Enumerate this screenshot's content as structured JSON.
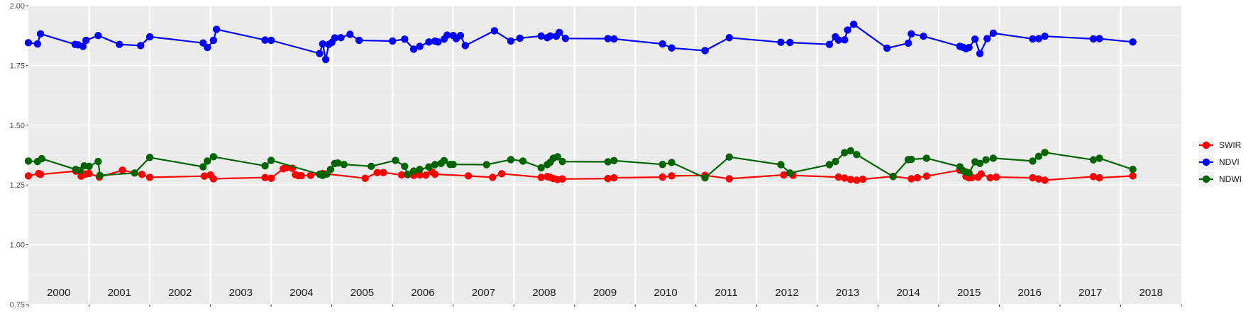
{
  "chart_data": {
    "type": "line",
    "title": "",
    "xlabel": "",
    "ylabel": "",
    "ylim": [
      0.75,
      2.0
    ],
    "yticks": [
      0.75,
      1.0,
      1.25,
      1.5,
      1.75,
      2.0
    ],
    "ytick_labels": [
      "0.75",
      "1.00",
      "1.25",
      "1.50",
      "1.75",
      "2.00"
    ],
    "xlim": [
      2000.0,
      2019.0
    ],
    "year_labels": [
      "2000",
      "2001",
      "2002",
      "2003",
      "2004",
      "2005",
      "2006",
      "2007",
      "2008",
      "2009",
      "2010",
      "2011",
      "2012",
      "2013",
      "2014",
      "2015",
      "2016",
      "2017",
      "2018"
    ],
    "grid": true,
    "legend_position": "right",
    "series": [
      {
        "name": "SWIR",
        "color": "#ff0000",
        "points": [
          [
            2000.0,
            1.288
          ],
          [
            2000.17,
            1.298
          ],
          [
            2000.2,
            1.294
          ],
          [
            2000.78,
            1.308
          ],
          [
            2000.87,
            1.287
          ],
          [
            2000.95,
            1.296
          ],
          [
            2001.0,
            1.298
          ],
          [
            2001.17,
            1.283
          ],
          [
            2001.55,
            1.312
          ],
          [
            2001.87,
            1.294
          ],
          [
            2002.0,
            1.282
          ],
          [
            2002.9,
            1.287
          ],
          [
            2003.0,
            1.292
          ],
          [
            2003.05,
            1.276
          ],
          [
            2003.9,
            1.281
          ],
          [
            2004.0,
            1.278
          ],
          [
            2004.2,
            1.318
          ],
          [
            2004.25,
            1.322
          ],
          [
            2004.35,
            1.32
          ],
          [
            2004.4,
            1.293
          ],
          [
            2004.45,
            1.289
          ],
          [
            2004.5,
            1.289
          ],
          [
            2004.65,
            1.29
          ],
          [
            2004.85,
            1.298
          ],
          [
            2005.55,
            1.278
          ],
          [
            2005.75,
            1.302
          ],
          [
            2005.85,
            1.302
          ],
          [
            2006.15,
            1.292
          ],
          [
            2006.25,
            1.293
          ],
          [
            2006.35,
            1.29
          ],
          [
            2006.45,
            1.292
          ],
          [
            2006.55,
            1.291
          ],
          [
            2006.65,
            1.305
          ],
          [
            2006.7,
            1.295
          ],
          [
            2007.25,
            1.288
          ],
          [
            2007.65,
            1.282
          ],
          [
            2007.8,
            1.297
          ],
          [
            2008.45,
            1.282
          ],
          [
            2008.55,
            1.285
          ],
          [
            2008.6,
            1.282
          ],
          [
            2008.65,
            1.277
          ],
          [
            2008.72,
            1.273
          ],
          [
            2008.8,
            1.275
          ],
          [
            2009.55,
            1.277
          ],
          [
            2009.65,
            1.28
          ],
          [
            2010.45,
            1.283
          ],
          [
            2010.6,
            1.288
          ],
          [
            2011.15,
            1.29
          ],
          [
            2011.55,
            1.276
          ],
          [
            2012.45,
            1.292
          ],
          [
            2012.6,
            1.29
          ],
          [
            2013.35,
            1.283
          ],
          [
            2013.45,
            1.279
          ],
          [
            2013.55,
            1.273
          ],
          [
            2013.65,
            1.27
          ],
          [
            2013.75,
            1.274
          ],
          [
            2014.25,
            1.286
          ],
          [
            2014.55,
            1.276
          ],
          [
            2014.65,
            1.28
          ],
          [
            2014.8,
            1.287
          ],
          [
            2015.35,
            1.312
          ],
          [
            2015.45,
            1.286
          ],
          [
            2015.5,
            1.28
          ],
          [
            2015.55,
            1.281
          ],
          [
            2015.65,
            1.283
          ],
          [
            2015.7,
            1.296
          ],
          [
            2015.85,
            1.28
          ],
          [
            2015.95,
            1.283
          ],
          [
            2016.55,
            1.28
          ],
          [
            2016.65,
            1.275
          ],
          [
            2016.75,
            1.27
          ],
          [
            2017.55,
            1.285
          ],
          [
            2017.65,
            1.28
          ],
          [
            2018.2,
            1.288
          ]
        ]
      },
      {
        "name": "NDVI",
        "color": "#0000ff",
        "points": [
          [
            2000.0,
            1.845
          ],
          [
            2000.15,
            1.84
          ],
          [
            2000.2,
            1.882
          ],
          [
            2000.77,
            1.838
          ],
          [
            2000.82,
            1.836
          ],
          [
            2000.9,
            1.83
          ],
          [
            2000.95,
            1.855
          ],
          [
            2001.15,
            1.875
          ],
          [
            2001.5,
            1.838
          ],
          [
            2001.85,
            1.833
          ],
          [
            2002.0,
            1.87
          ],
          [
            2002.88,
            1.844
          ],
          [
            2002.95,
            1.825
          ],
          [
            2003.05,
            1.855
          ],
          [
            2003.1,
            1.901
          ],
          [
            2003.9,
            1.856
          ],
          [
            2004.0,
            1.855
          ],
          [
            2004.8,
            1.8
          ],
          [
            2004.85,
            1.84
          ],
          [
            2004.9,
            1.775
          ],
          [
            2004.95,
            1.838
          ],
          [
            2005.0,
            1.846
          ],
          [
            2005.05,
            1.865
          ],
          [
            2005.15,
            1.866
          ],
          [
            2005.3,
            1.88
          ],
          [
            2005.45,
            1.855
          ],
          [
            2006.0,
            1.852
          ],
          [
            2006.2,
            1.86
          ],
          [
            2006.35,
            1.818
          ],
          [
            2006.45,
            1.83
          ],
          [
            2006.6,
            1.848
          ],
          [
            2006.7,
            1.852
          ],
          [
            2006.75,
            1.848
          ],
          [
            2006.85,
            1.86
          ],
          [
            2006.9,
            1.877
          ],
          [
            2007.0,
            1.875
          ],
          [
            2007.05,
            1.862
          ],
          [
            2007.12,
            1.875
          ],
          [
            2007.2,
            1.833
          ],
          [
            2007.68,
            1.895
          ],
          [
            2007.95,
            1.852
          ],
          [
            2008.1,
            1.864
          ],
          [
            2008.45,
            1.873
          ],
          [
            2008.55,
            1.866
          ],
          [
            2008.6,
            1.873
          ],
          [
            2008.7,
            1.872
          ],
          [
            2008.75,
            1.888
          ],
          [
            2008.85,
            1.863
          ],
          [
            2009.55,
            1.862
          ],
          [
            2009.65,
            1.861
          ],
          [
            2010.45,
            1.84
          ],
          [
            2010.6,
            1.823
          ],
          [
            2011.15,
            1.812
          ],
          [
            2011.55,
            1.866
          ],
          [
            2012.4,
            1.847
          ],
          [
            2012.55,
            1.846
          ],
          [
            2013.2,
            1.838
          ],
          [
            2013.3,
            1.87
          ],
          [
            2013.35,
            1.856
          ],
          [
            2013.45,
            1.857
          ],
          [
            2013.5,
            1.898
          ],
          [
            2013.6,
            1.922
          ],
          [
            2014.15,
            1.822
          ],
          [
            2014.5,
            1.843
          ],
          [
            2014.55,
            1.882
          ],
          [
            2014.75,
            1.872
          ],
          [
            2015.35,
            1.83
          ],
          [
            2015.4,
            1.826
          ],
          [
            2015.45,
            1.82
          ],
          [
            2015.5,
            1.825
          ],
          [
            2015.6,
            1.86
          ],
          [
            2015.68,
            1.8
          ],
          [
            2015.8,
            1.862
          ],
          [
            2015.9,
            1.885
          ],
          [
            2016.55,
            1.861
          ],
          [
            2016.65,
            1.862
          ],
          [
            2016.75,
            1.872
          ],
          [
            2017.55,
            1.861
          ],
          [
            2017.65,
            1.862
          ],
          [
            2018.2,
            1.848
          ]
        ]
      },
      {
        "name": "NDWI",
        "color": "#006400",
        "points": [
          [
            2000.0,
            1.35
          ],
          [
            2000.15,
            1.348
          ],
          [
            2000.22,
            1.36
          ],
          [
            2000.78,
            1.315
          ],
          [
            2000.85,
            1.31
          ],
          [
            2000.92,
            1.33
          ],
          [
            2001.0,
            1.328
          ],
          [
            2001.15,
            1.348
          ],
          [
            2001.18,
            1.29
          ],
          [
            2001.75,
            1.3
          ],
          [
            2002.0,
            1.365
          ],
          [
            2002.88,
            1.326
          ],
          [
            2002.95,
            1.35
          ],
          [
            2003.05,
            1.368
          ],
          [
            2003.9,
            1.33
          ],
          [
            2004.0,
            1.353
          ],
          [
            2004.8,
            1.295
          ],
          [
            2004.85,
            1.29
          ],
          [
            2004.92,
            1.296
          ],
          [
            2004.98,
            1.315
          ],
          [
            2005.05,
            1.34
          ],
          [
            2005.1,
            1.342
          ],
          [
            2005.2,
            1.336
          ],
          [
            2005.65,
            1.328
          ],
          [
            2006.05,
            1.353
          ],
          [
            2006.2,
            1.328
          ],
          [
            2006.25,
            1.295
          ],
          [
            2006.35,
            1.308
          ],
          [
            2006.45,
            1.315
          ],
          [
            2006.6,
            1.325
          ],
          [
            2006.7,
            1.335
          ],
          [
            2006.8,
            1.34
          ],
          [
            2006.85,
            1.352
          ],
          [
            2006.95,
            1.336
          ],
          [
            2007.0,
            1.336
          ],
          [
            2007.55,
            1.335
          ],
          [
            2007.95,
            1.356
          ],
          [
            2008.15,
            1.35
          ],
          [
            2008.45,
            1.322
          ],
          [
            2008.55,
            1.335
          ],
          [
            2008.6,
            1.345
          ],
          [
            2008.65,
            1.362
          ],
          [
            2008.72,
            1.368
          ],
          [
            2008.8,
            1.348
          ],
          [
            2009.55,
            1.347
          ],
          [
            2009.65,
            1.352
          ],
          [
            2010.45,
            1.336
          ],
          [
            2010.6,
            1.344
          ],
          [
            2011.15,
            1.28
          ],
          [
            2011.55,
            1.367
          ],
          [
            2012.4,
            1.335
          ],
          [
            2012.55,
            1.3
          ],
          [
            2013.2,
            1.335
          ],
          [
            2013.3,
            1.348
          ],
          [
            2013.45,
            1.385
          ],
          [
            2013.55,
            1.393
          ],
          [
            2013.65,
            1.377
          ],
          [
            2014.25,
            1.285
          ],
          [
            2014.5,
            1.356
          ],
          [
            2014.55,
            1.357
          ],
          [
            2014.8,
            1.362
          ],
          [
            2015.35,
            1.326
          ],
          [
            2015.4,
            1.31
          ],
          [
            2015.45,
            1.304
          ],
          [
            2015.5,
            1.3
          ],
          [
            2015.6,
            1.347
          ],
          [
            2015.68,
            1.34
          ],
          [
            2015.78,
            1.355
          ],
          [
            2015.9,
            1.362
          ],
          [
            2016.55,
            1.35
          ],
          [
            2016.65,
            1.37
          ],
          [
            2016.75,
            1.386
          ],
          [
            2017.55,
            1.355
          ],
          [
            2017.65,
            1.362
          ],
          [
            2018.2,
            1.315
          ]
        ]
      }
    ]
  }
}
